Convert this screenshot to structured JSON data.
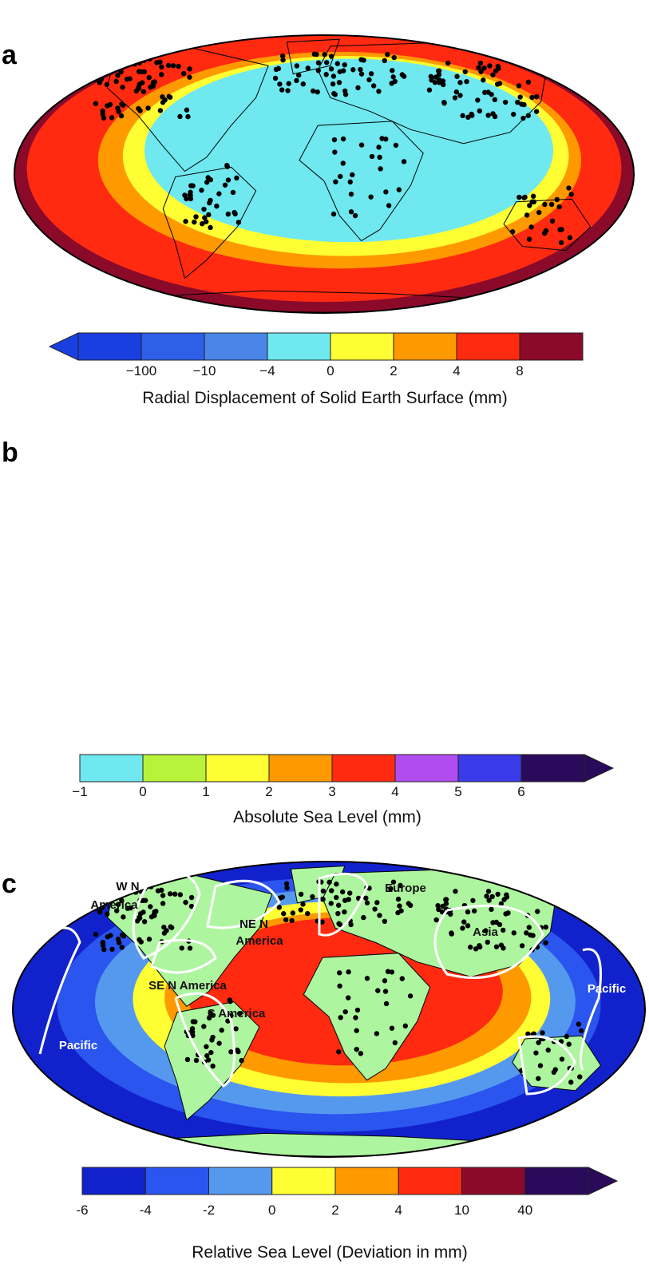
{
  "panels": [
    {
      "letter": "a",
      "colorbar": {
        "title": "Radial Displacement of Solid Earth Surface (mm)",
        "colors": [
          "#1a3fe0",
          "#2f5fe8",
          "#4a86e8",
          "#6fe8f0",
          "#ffff33",
          "#ff9900",
          "#ff2a10",
          "#8b0a2a"
        ],
        "ticks": [
          "−100",
          "−10",
          "−4",
          "0",
          "2",
          "4",
          "8"
        ],
        "arrow_left": true,
        "arrow_right": false
      }
    },
    {
      "letter": "b",
      "colorbar": {
        "title": "Absolute Sea Level (mm)",
        "colors": [
          "#6fe8f0",
          "#b8f23a",
          "#ffff33",
          "#ff9900",
          "#ff2a10",
          "#b04cf0",
          "#3a3ae8",
          "#2a0a5a"
        ],
        "ticks": [
          "−1",
          "0",
          "1",
          "2",
          "3",
          "4",
          "5",
          "6"
        ],
        "arrow_left": false,
        "arrow_right": true
      }
    },
    {
      "letter": "c",
      "region_labels": [
        "W N",
        "America",
        "NE N",
        "America",
        "SE N America",
        "Europe",
        "Asia",
        "S America",
        "Pacific",
        "Pacific"
      ],
      "colorbar": {
        "title": "Relative Sea Level (Deviation in mm)",
        "colors": [
          "#1122cc",
          "#2a55ee",
          "#5599ee",
          "#ffff33",
          "#ff9900",
          "#ff2a10",
          "#8b0a2a",
          "#2a0a5a"
        ],
        "ticks": [
          "-6",
          "-4",
          "-2",
          "0",
          "2",
          "4",
          "10",
          "40"
        ],
        "arrow_left": false,
        "arrow_right": true
      }
    }
  ],
  "land_color": "#aef5a0",
  "point_color": "#000000"
}
